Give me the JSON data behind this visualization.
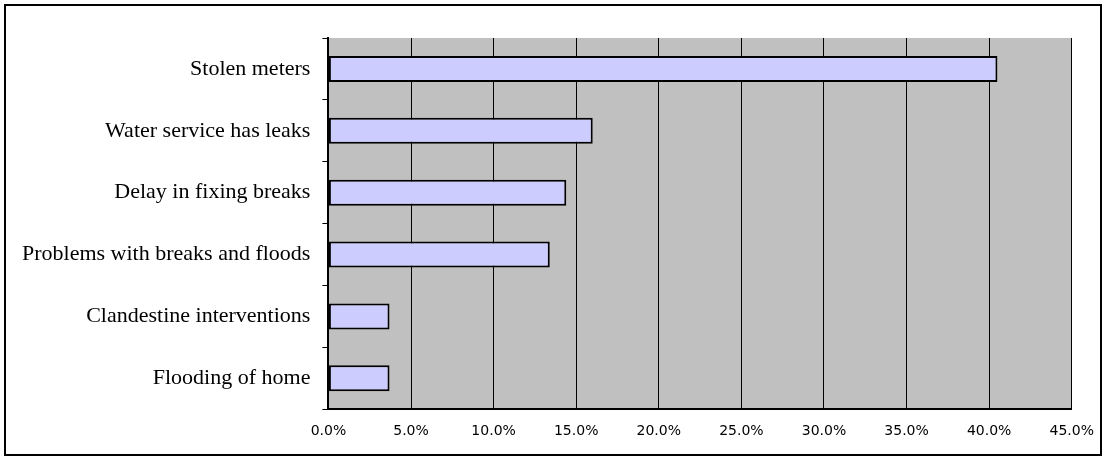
{
  "chart_data": {
    "type": "bar",
    "orientation": "horizontal",
    "categories": [
      "Stolen meters",
      "Water service has leaks",
      "Delay in fixing breaks",
      "Problems with breaks and floods",
      "Clandestine interventions",
      "Flooding of home"
    ],
    "values": [
      40.5,
      16.0,
      14.4,
      13.4,
      3.7,
      3.7
    ],
    "color": "#ccccff",
    "xlim": [
      0,
      45
    ],
    "xticks": [
      {
        "value": 0,
        "label": "0.0%"
      },
      {
        "value": 5,
        "label": "5.0%"
      },
      {
        "value": 10,
        "label": "10.0%"
      },
      {
        "value": 15,
        "label": "15.0%"
      },
      {
        "value": 20,
        "label": "20.0%"
      },
      {
        "value": 25,
        "label": "25.0%"
      },
      {
        "value": 30,
        "label": "30.0%"
      },
      {
        "value": 35,
        "label": "35.0%"
      },
      {
        "value": 40,
        "label": "40.0%"
      },
      {
        "value": 45,
        "label": "45.0%"
      }
    ],
    "grid": "x",
    "legend": false
  }
}
